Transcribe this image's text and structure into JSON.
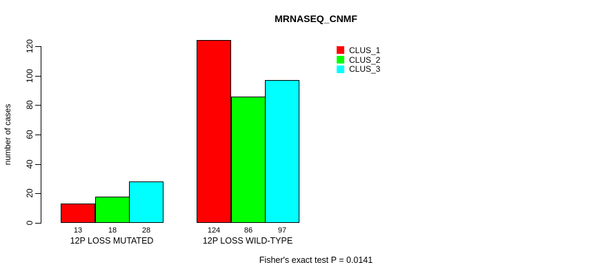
{
  "figure": {
    "title": "MRNASEQ_CNMF",
    "footer": "Fisher's exact test P = 0.0141"
  },
  "chart_data": {
    "type": "bar",
    "title": "MRNASEQ_CNMF",
    "categories": [
      "12P LOSS MUTATED",
      "12P LOSS WILD-TYPE"
    ],
    "series": [
      {
        "name": "CLUS_1",
        "color": "#FF0000",
        "values": [
          13,
          124
        ]
      },
      {
        "name": "CLUS_2",
        "color": "#00FF00",
        "values": [
          18,
          86
        ]
      },
      {
        "name": "CLUS_3",
        "color": "#00FFFF",
        "values": [
          28,
          97
        ]
      }
    ],
    "bar_value_labels": [
      [
        "13",
        "18",
        "28"
      ],
      [
        "124",
        "86",
        "97"
      ]
    ],
    "xlabel": "",
    "ylabel": "number of cases",
    "ylim": [
      0,
      130
    ],
    "yticks": [
      0,
      20,
      40,
      60,
      80,
      100,
      120
    ],
    "grid": false,
    "legend_position": "inside-top-right",
    "annotation": "Fisher's exact test P = 0.0141"
  }
}
